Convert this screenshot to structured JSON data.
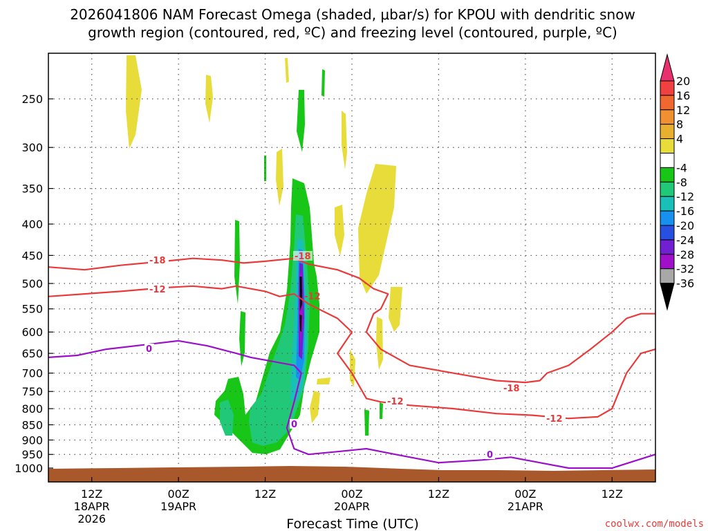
{
  "chart_data": {
    "type": "time-height cross section",
    "title_line1": "2026041806 NAM Forecast Omega (shaded, μbar/s) for KPOU with dendritic snow",
    "title_line2": "growth region (contoured, red, ºC) and freezing level (contoured, purple, ºC)",
    "xlabel": "Forecast Time (UTC)",
    "credit": "coolwx.com/models",
    "y_ticks": [
      "250",
      "300",
      "350",
      "400",
      "450",
      "500",
      "550",
      "600",
      "650",
      "700",
      "750",
      "800",
      "850",
      "900",
      "950",
      "1000"
    ],
    "y_range_mb": [
      200,
      1030
    ],
    "x_ticks": [
      {
        "hour": 6,
        "line1": "12Z",
        "line2": "18APR",
        "line3": "2026"
      },
      {
        "hour": 18,
        "line1": "00Z",
        "line2": "19APR",
        "line3": ""
      },
      {
        "hour": 30,
        "line1": "12Z",
        "line2": "",
        "line3": ""
      },
      {
        "hour": 42,
        "line1": "00Z",
        "line2": "20APR",
        "line3": ""
      },
      {
        "hour": 54,
        "line1": "12Z",
        "line2": "",
        "line3": ""
      },
      {
        "hour": 66,
        "line1": "00Z",
        "line2": "21APR",
        "line3": ""
      },
      {
        "hour": 78,
        "line1": "12Z",
        "line2": "",
        "line3": ""
      }
    ],
    "x_range_hours": [
      0,
      84
    ],
    "colorbar": {
      "labels": [
        "20",
        "16",
        "12",
        "8",
        "4",
        "-4",
        "-8",
        "-12",
        "-16",
        "-20",
        "-24",
        "-28",
        "-32",
        "-36"
      ],
      "colors": [
        "#e8306e",
        "#f04040",
        "#f06830",
        "#f09030",
        "#e8b030",
        "#e8dc3a",
        "#ffffff",
        "#17c617",
        "#20c878",
        "#18c0b8",
        "#1890f0",
        "#2850e0",
        "#7020d0",
        "#a010c8",
        "#a8a8a8",
        "#000000"
      ]
    },
    "contour_labels": {
      "dgz_upper": "-18",
      "dgz_lower": "-12",
      "freezing": "0"
    },
    "contours": {
      "dgz_upper_-18": [
        [
          0,
          470
        ],
        [
          5,
          475
        ],
        [
          10,
          467
        ],
        [
          16,
          460
        ],
        [
          20,
          455
        ],
        [
          24,
          458
        ],
        [
          27,
          463
        ],
        [
          30,
          460
        ],
        [
          34,
          455
        ],
        [
          36,
          465
        ],
        [
          40,
          475
        ],
        [
          43,
          490
        ],
        [
          45,
          510
        ],
        [
          47,
          520
        ],
        [
          46,
          550
        ],
        [
          45,
          560
        ],
        [
          44,
          600
        ],
        [
          46,
          640
        ],
        [
          50,
          680
        ],
        [
          56,
          700
        ],
        [
          62,
          720
        ],
        [
          66,
          725
        ],
        [
          68,
          720
        ],
        [
          69,
          700
        ],
        [
          72,
          680
        ],
        [
          75,
          640
        ],
        [
          78,
          600
        ],
        [
          80,
          570
        ],
        [
          82,
          560
        ],
        [
          84,
          560
        ]
      ],
      "dgz_lower_-12": [
        [
          0,
          525
        ],
        [
          5,
          520
        ],
        [
          10,
          515
        ],
        [
          16,
          508
        ],
        [
          20,
          505
        ],
        [
          24,
          510
        ],
        [
          26,
          505
        ],
        [
          30,
          515
        ],
        [
          32,
          525
        ],
        [
          34,
          520
        ],
        [
          36,
          540
        ],
        [
          40,
          570
        ],
        [
          42,
          600
        ],
        [
          40,
          650
        ],
        [
          42,
          700
        ],
        [
          44,
          770
        ],
        [
          46,
          780
        ],
        [
          50,
          790
        ],
        [
          56,
          800
        ],
        [
          62,
          815
        ],
        [
          67,
          820
        ],
        [
          72,
          830
        ],
        [
          76,
          825
        ],
        [
          78,
          800
        ],
        [
          80,
          700
        ],
        [
          82,
          650
        ],
        [
          84,
          640
        ]
      ],
      "freezing_0": [
        [
          0,
          660
        ],
        [
          4,
          655
        ],
        [
          8,
          640
        ],
        [
          14,
          628
        ],
        [
          18,
          620
        ],
        [
          22,
          632
        ],
        [
          26,
          650
        ],
        [
          28,
          660
        ],
        [
          31,
          670
        ],
        [
          34,
          680
        ],
        [
          35,
          700
        ],
        [
          34,
          780
        ],
        [
          33,
          860
        ],
        [
          34,
          930
        ],
        [
          36,
          950
        ],
        [
          40,
          940
        ],
        [
          44,
          930
        ],
        [
          48,
          950
        ],
        [
          54,
          980
        ],
        [
          60,
          970
        ],
        [
          64,
          960
        ],
        [
          68,
          980
        ],
        [
          72,
          1000
        ],
        [
          78,
          1000
        ],
        [
          84,
          950
        ]
      ]
    }
  }
}
